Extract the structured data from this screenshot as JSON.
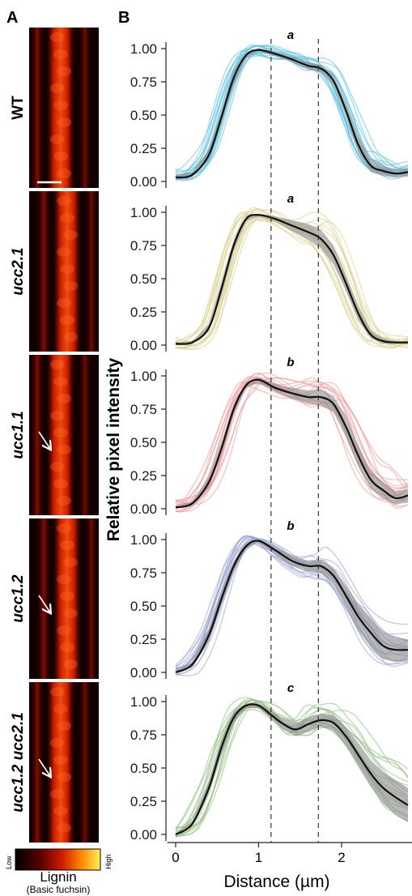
{
  "panel_a_label": "A",
  "panel_b_label": "B",
  "colorbar": {
    "low": "Low",
    "high": "High",
    "title": "Lignin",
    "subtitle": "(Basic fuchsin)"
  },
  "colors": {
    "WT": "#5bbfe0",
    "ucc2.1": "#d9cf8c",
    "ucc1.1": "#ef9a9a",
    "ucc1.2": "#9aa3d0",
    "ucc1.2 ucc2.1": "#8fbf84",
    "mean_line": "#111111",
    "band": "#8a8a8a"
  },
  "chart_data": {
    "type": "line",
    "xlabel": "Distance (µm)",
    "ylabel": "Relative pixel intensity",
    "xlim": [
      -0.1,
      2.85
    ],
    "ylim": [
      0,
      1
    ],
    "x_ticks": [
      "0",
      "1",
      "2"
    ],
    "y_ticks": [
      "0.00",
      "0.25",
      "0.50",
      "0.75",
      "1.00"
    ],
    "dashed_vlines_x": [
      1.15,
      1.72
    ],
    "panels": [
      {
        "genotype": "WT",
        "significance": "a",
        "mean": [
          [
            0,
            0.03
          ],
          [
            0.2,
            0.05
          ],
          [
            0.4,
            0.2
          ],
          [
            0.55,
            0.48
          ],
          [
            0.7,
            0.78
          ],
          [
            0.85,
            0.95
          ],
          [
            1.0,
            0.99
          ],
          [
            1.2,
            0.96
          ],
          [
            1.4,
            0.92
          ],
          [
            1.6,
            0.87
          ],
          [
            1.75,
            0.85
          ],
          [
            1.9,
            0.76
          ],
          [
            2.05,
            0.54
          ],
          [
            2.2,
            0.28
          ],
          [
            2.35,
            0.12
          ],
          [
            2.5,
            0.08
          ],
          [
            2.65,
            0.06
          ],
          [
            2.8,
            0.07
          ]
        ],
        "band": [
          0.02,
          0.02,
          0.04,
          0.05,
          0.05,
          0.02,
          0.01,
          0.02,
          0.02,
          0.03,
          0.03,
          0.04,
          0.05,
          0.06,
          0.05,
          0.04,
          0.03,
          0.03
        ]
      },
      {
        "genotype": "ucc2.1",
        "significance": "a",
        "mean": [
          [
            0,
            0.01
          ],
          [
            0.2,
            0.02
          ],
          [
            0.4,
            0.13
          ],
          [
            0.55,
            0.42
          ],
          [
            0.7,
            0.75
          ],
          [
            0.85,
            0.95
          ],
          [
            1.0,
            0.98
          ],
          [
            1.2,
            0.95
          ],
          [
            1.4,
            0.9
          ],
          [
            1.6,
            0.85
          ],
          [
            1.75,
            0.8
          ],
          [
            1.9,
            0.68
          ],
          [
            2.05,
            0.47
          ],
          [
            2.2,
            0.24
          ],
          [
            2.35,
            0.08
          ],
          [
            2.5,
            0.03
          ],
          [
            2.65,
            0.02
          ],
          [
            2.8,
            0.02
          ]
        ],
        "band": [
          0.01,
          0.01,
          0.03,
          0.05,
          0.04,
          0.02,
          0.01,
          0.02,
          0.04,
          0.06,
          0.07,
          0.07,
          0.06,
          0.05,
          0.03,
          0.02,
          0.01,
          0.01
        ]
      },
      {
        "genotype": "ucc1.1",
        "significance": "b",
        "mean": [
          [
            0,
            0.01
          ],
          [
            0.2,
            0.04
          ],
          [
            0.4,
            0.2
          ],
          [
            0.55,
            0.45
          ],
          [
            0.7,
            0.75
          ],
          [
            0.85,
            0.93
          ],
          [
            1.0,
            0.97
          ],
          [
            1.2,
            0.91
          ],
          [
            1.4,
            0.87
          ],
          [
            1.6,
            0.84
          ],
          [
            1.75,
            0.84
          ],
          [
            1.9,
            0.79
          ],
          [
            2.05,
            0.62
          ],
          [
            2.2,
            0.4
          ],
          [
            2.35,
            0.22
          ],
          [
            2.5,
            0.14
          ],
          [
            2.65,
            0.08
          ],
          [
            2.8,
            0.1
          ]
        ],
        "band": [
          0.01,
          0.02,
          0.04,
          0.05,
          0.04,
          0.02,
          0.02,
          0.03,
          0.04,
          0.05,
          0.06,
          0.06,
          0.08,
          0.08,
          0.07,
          0.06,
          0.05,
          0.05
        ]
      },
      {
        "genotype": "ucc1.2",
        "significance": "b",
        "mean": [
          [
            0,
            0.0
          ],
          [
            0.2,
            0.06
          ],
          [
            0.4,
            0.28
          ],
          [
            0.55,
            0.55
          ],
          [
            0.7,
            0.8
          ],
          [
            0.85,
            0.95
          ],
          [
            1.0,
            0.99
          ],
          [
            1.2,
            0.92
          ],
          [
            1.4,
            0.84
          ],
          [
            1.6,
            0.8
          ],
          [
            1.75,
            0.8
          ],
          [
            1.9,
            0.73
          ],
          [
            2.05,
            0.58
          ],
          [
            2.2,
            0.42
          ],
          [
            2.35,
            0.3
          ],
          [
            2.5,
            0.2
          ],
          [
            2.65,
            0.17
          ],
          [
            2.8,
            0.17
          ]
        ],
        "band": [
          0.01,
          0.02,
          0.05,
          0.05,
          0.04,
          0.02,
          0.01,
          0.03,
          0.04,
          0.04,
          0.05,
          0.06,
          0.08,
          0.1,
          0.11,
          0.1,
          0.09,
          0.08
        ]
      },
      {
        "genotype": "ucc1.2 ucc2.1",
        "significance": "c",
        "mean": [
          [
            0,
            0.0
          ],
          [
            0.2,
            0.08
          ],
          [
            0.4,
            0.35
          ],
          [
            0.55,
            0.65
          ],
          [
            0.7,
            0.88
          ],
          [
            0.85,
            0.97
          ],
          [
            1.0,
            0.97
          ],
          [
            1.15,
            0.9
          ],
          [
            1.3,
            0.83
          ],
          [
            1.45,
            0.79
          ],
          [
            1.6,
            0.83
          ],
          [
            1.75,
            0.86
          ],
          [
            1.9,
            0.84
          ],
          [
            2.05,
            0.74
          ],
          [
            2.2,
            0.6
          ],
          [
            2.35,
            0.46
          ],
          [
            2.5,
            0.35
          ],
          [
            2.65,
            0.28
          ],
          [
            2.8,
            0.22
          ]
        ],
        "band": [
          0.01,
          0.02,
          0.05,
          0.06,
          0.04,
          0.02,
          0.02,
          0.03,
          0.04,
          0.05,
          0.05,
          0.05,
          0.06,
          0.07,
          0.09,
          0.1,
          0.12,
          0.13,
          0.13
        ]
      }
    ]
  },
  "rows": [
    {
      "label": "WT",
      "italic": false,
      "arrow": false
    },
    {
      "label": "ucc2.1",
      "italic": true,
      "arrow": false
    },
    {
      "label": "ucc1.1",
      "italic": true,
      "arrow": true
    },
    {
      "label": "ucc1.2",
      "italic": true,
      "arrow": true
    },
    {
      "label": "ucc1.2 ucc2.1",
      "italic": true,
      "arrow": true
    }
  ]
}
